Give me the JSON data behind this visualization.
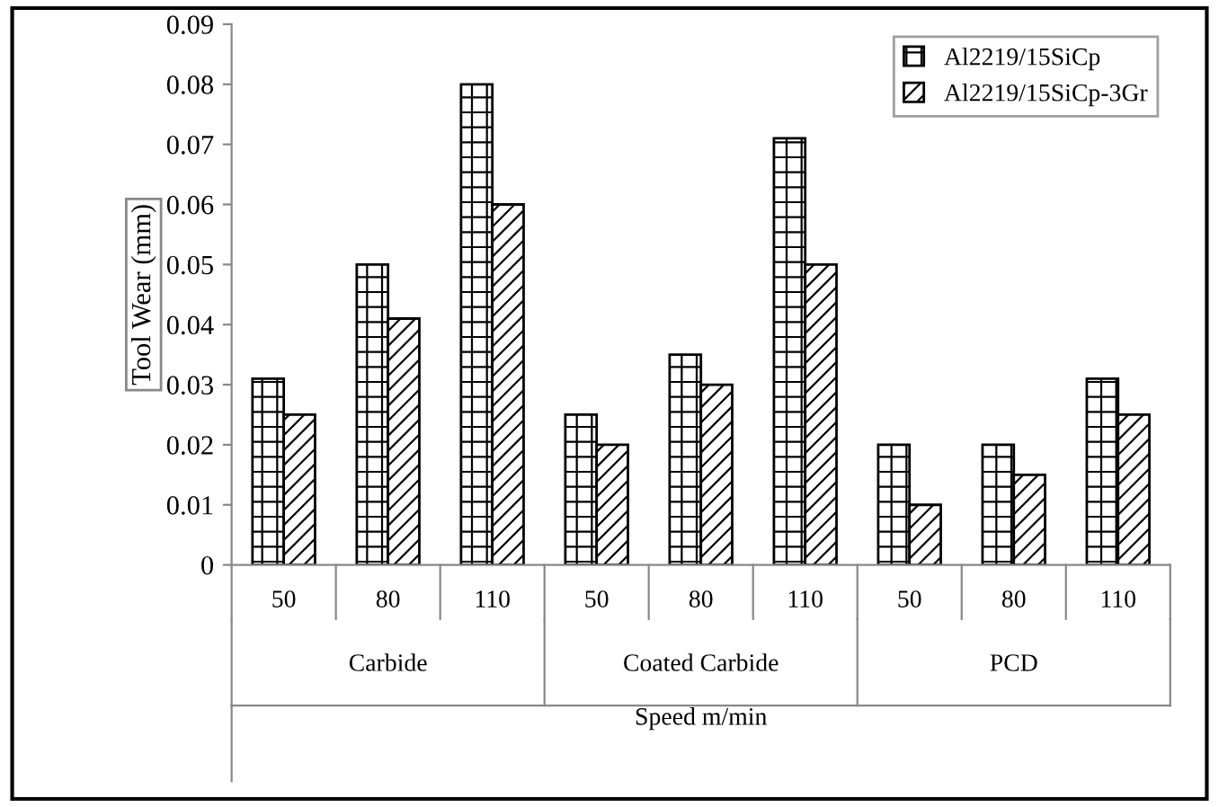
{
  "chart_data": {
    "type": "bar",
    "ylabel": "Tool Wear (mm)",
    "xlabel": "Speed m/min",
    "categories": [
      "50",
      "80",
      "110",
      "50",
      "80",
      "110",
      "50",
      "80",
      "110"
    ],
    "annotations": [
      "Carbide",
      "Coated Carbide",
      "PCD"
    ],
    "series": [
      {
        "name": "Al2219/15SiCp",
        "color": "#000000",
        "values": [
          0.031,
          0.05,
          0.08,
          0.025,
          0.035,
          0.071,
          0.02,
          0.02,
          0.031
        ]
      },
      {
        "name": "Al2219/15SiCp-3Gr",
        "color": "#000000",
        "values": [
          0.025,
          0.041,
          0.06,
          0.02,
          0.03,
          0.05,
          0.01,
          0.015,
          0.025
        ]
      }
    ],
    "ylim": [
      0,
      0.09
    ],
    "yticks": [
      0,
      0.01,
      0.02,
      0.03,
      0.04,
      0.05,
      0.06,
      0.07,
      0.08,
      0.09
    ],
    "grid": false,
    "legend": "top right"
  }
}
